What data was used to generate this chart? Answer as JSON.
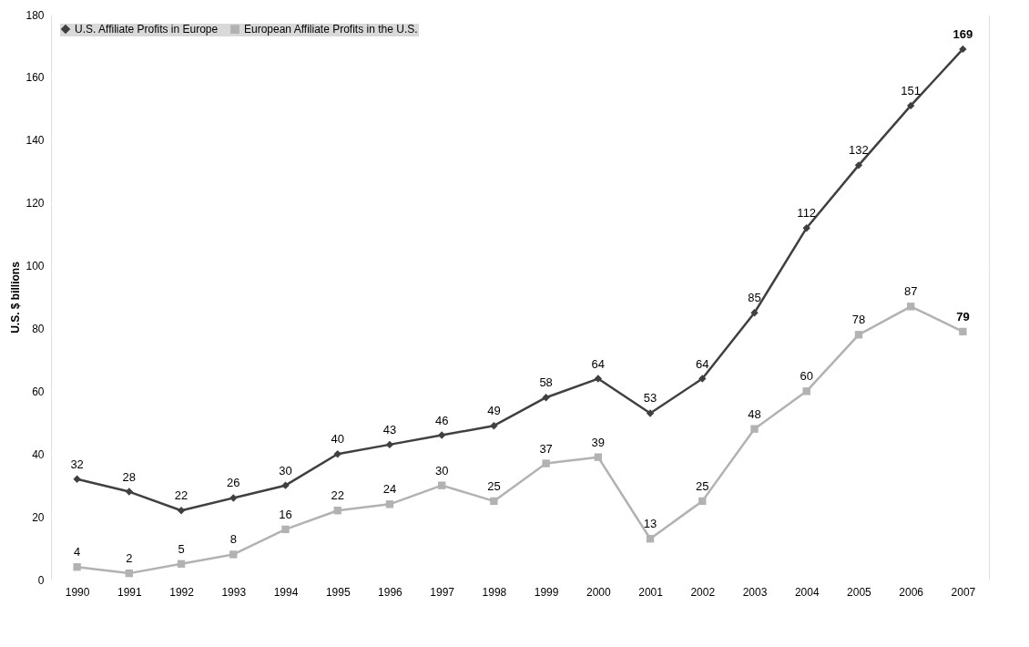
{
  "chart_data": {
    "type": "line",
    "ylabel": "U.S. $ billions",
    "categories": [
      "1990",
      "1991",
      "1992",
      "1993",
      "1994",
      "1995",
      "1996",
      "1997",
      "1998",
      "1999",
      "2000",
      "2001",
      "2002",
      "2003",
      "2004",
      "2005",
      "2006",
      "2007"
    ],
    "series": [
      {
        "name": "U.S. Affiliate Profits in Europe",
        "color": "#404040",
        "marker": "diamond",
        "values": [
          32,
          28,
          22,
          26,
          30,
          40,
          43,
          46,
          49,
          58,
          64,
          53,
          64,
          85,
          112,
          132,
          151,
          169
        ]
      },
      {
        "name": "European Affiliate Profits in the U.S.",
        "color": "#b2b2b2",
        "marker": "square",
        "values": [
          4,
          2,
          5,
          8,
          16,
          22,
          24,
          30,
          25,
          37,
          39,
          13,
          25,
          48,
          60,
          78,
          87,
          79
        ]
      }
    ],
    "ylim": [
      0,
      180
    ],
    "yticks": [
      0,
      20,
      40,
      60,
      80,
      100,
      120,
      140,
      160,
      180
    ],
    "grid": "y",
    "legend": "top left",
    "data_labels": true,
    "line_style": "solid"
  }
}
